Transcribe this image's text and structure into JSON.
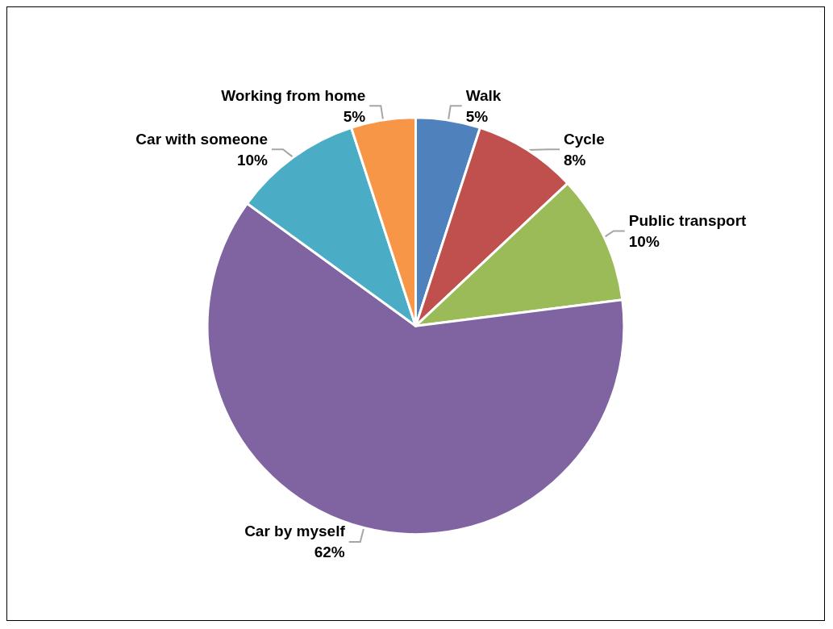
{
  "chart_data": {
    "type": "pie",
    "categories": [
      "Walk",
      "Cycle",
      "Public transport",
      "Car by myself",
      "Car with someone",
      "Working from home"
    ],
    "values": [
      5,
      8,
      10,
      62,
      10,
      5
    ],
    "value_labels": [
      "5%",
      "8%",
      "10%",
      "62%",
      "10%",
      "5%"
    ],
    "colors": [
      "#4f81bd",
      "#c0504d",
      "#9bbb59",
      "#8064a2",
      "#4bacc6",
      "#f79646"
    ],
    "legend": false
  }
}
